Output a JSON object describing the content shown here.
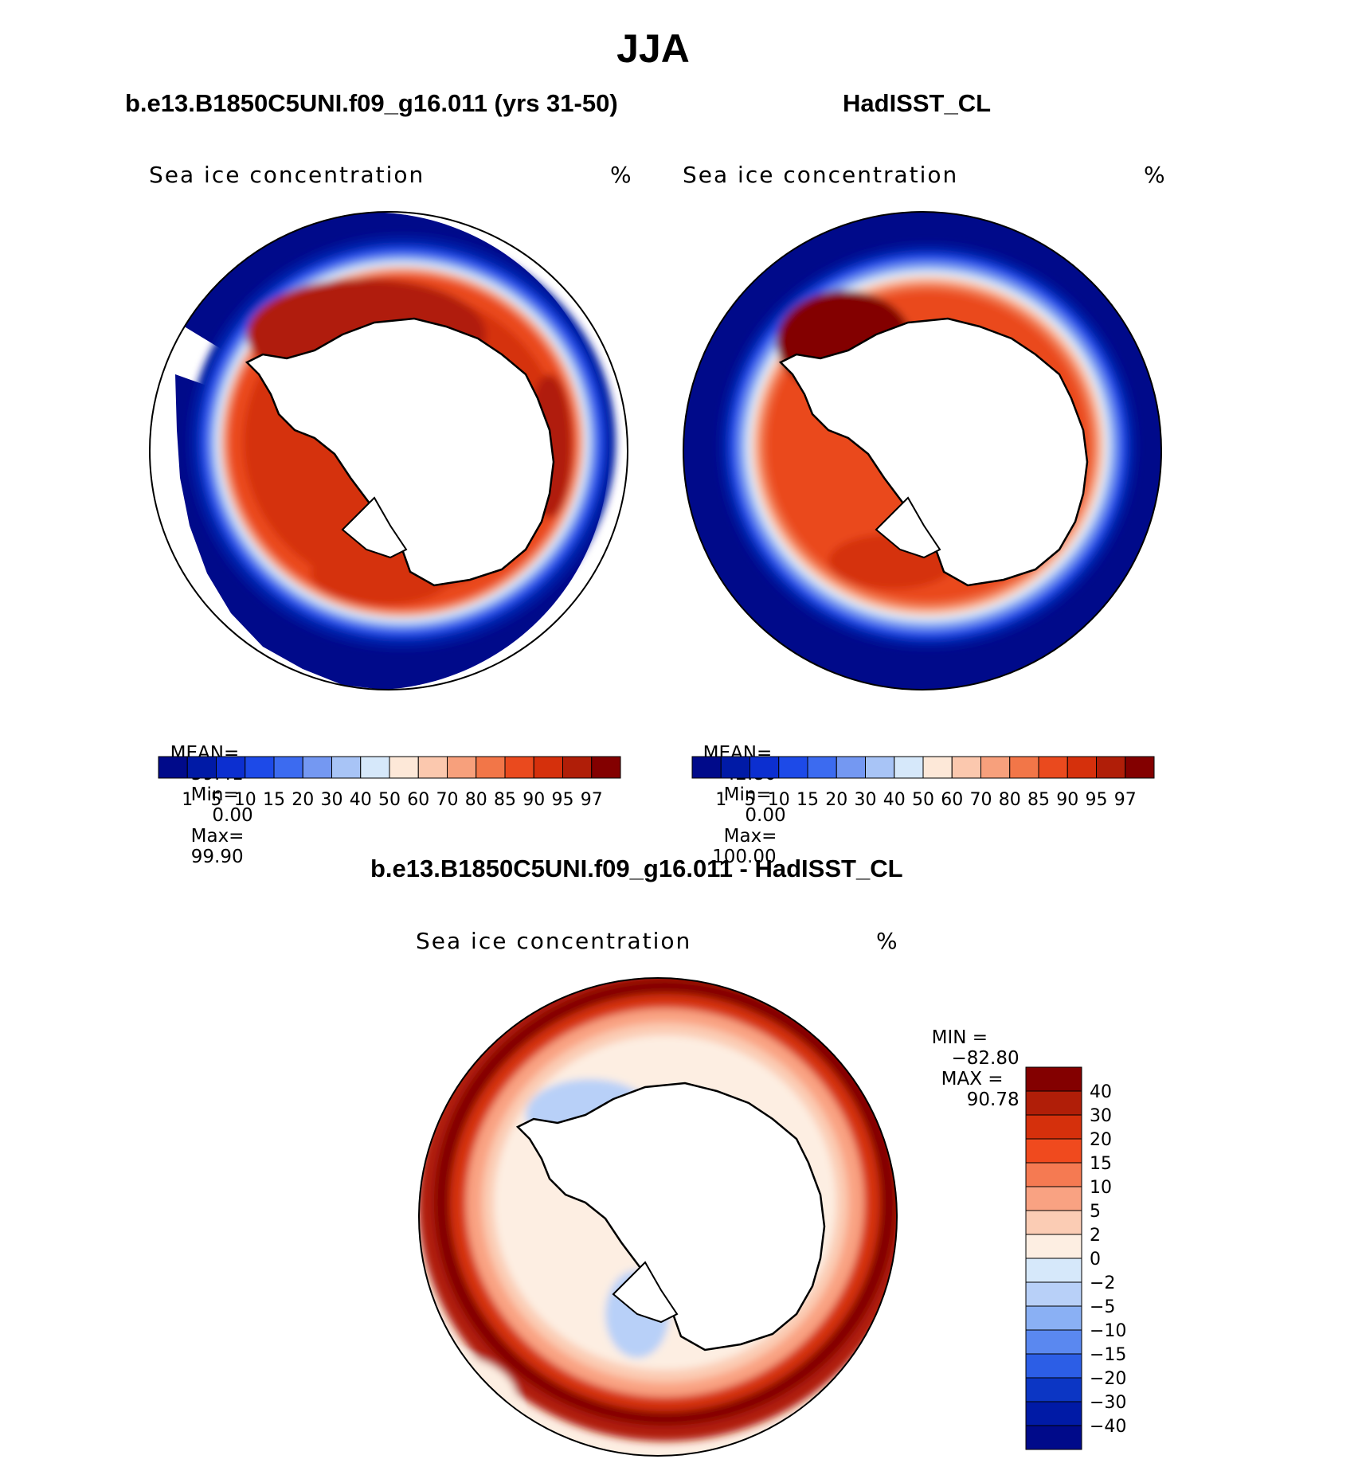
{
  "title": "JJA",
  "panel_left": {
    "title": "b.e13.B1850C5UNI.f09_g16.011 (yrs 31-50)",
    "field": "Sea ice concentration",
    "units": "%",
    "mean_label": "MEAN=",
    "mean": "59.41",
    "min_label": "Min=",
    "min": "0.00",
    "max_label": "Max=",
    "max": "99.90"
  },
  "panel_right": {
    "title": "HadISST_CL",
    "field": "Sea ice concentration",
    "units": "%",
    "mean_label": "MEAN=",
    "mean": "42.80",
    "min_label": "Min=",
    "min": "0.00",
    "max_label": "Max=",
    "max": "100.00"
  },
  "panel_diff": {
    "title": "b.e13.B1850C5UNI.f09_g16.011 - HadISST_CL",
    "field": "Sea ice concentration",
    "units": "%",
    "min_label": "MIN =",
    "min": "−82.80",
    "max_label": "MAX =",
    "max": "90.78"
  },
  "colorbar_conc": {
    "labels": [
      "1",
      "5",
      "10",
      "15",
      "20",
      "30",
      "40",
      "50",
      "60",
      "70",
      "80",
      "85",
      "90",
      "95",
      "97"
    ],
    "colors": [
      "#000a8a",
      "#001aa6",
      "#0c2fd0",
      "#1d4ae8",
      "#3c6bf0",
      "#7498f2",
      "#a8c4f6",
      "#d6e8fa",
      "#fde8d8",
      "#fbc8ae",
      "#f7a07c",
      "#f27648",
      "#ea4a1e",
      "#d5300c",
      "#b01e08",
      "#830000"
    ]
  },
  "colorbar_diff": {
    "labels": [
      "40",
      "30",
      "20",
      "15",
      "10",
      "5",
      "2",
      "0",
      "−2",
      "−5",
      "−10",
      "−15",
      "−20",
      "−30",
      "−40"
    ],
    "colors": [
      "#830000",
      "#b01e08",
      "#d5300c",
      "#f04a1e",
      "#f57a52",
      "#f9a282",
      "#fbccb4",
      "#fdeee2",
      "#d6e8fa",
      "#b8d0f8",
      "#8ab0f4",
      "#5a88f0",
      "#2c5ee6",
      "#0c36c4",
      "#001aa6",
      "#000a8a"
    ]
  }
}
